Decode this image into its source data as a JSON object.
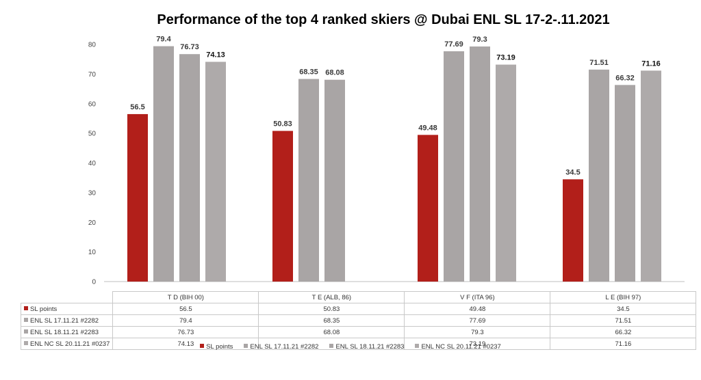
{
  "chart_data": {
    "type": "bar",
    "title": "Performance of the top 4 ranked skiers @ Dubai ENL SL 17-2-.11.2021",
    "xlabel": "",
    "ylabel": "",
    "ylim": [
      0,
      80
    ],
    "yticks": [
      "0",
      "10",
      "20",
      "30",
      "40",
      "50",
      "60",
      "70",
      "80"
    ],
    "grid": false,
    "legend_position": "bottom",
    "categories": [
      "T D (BIH 00)",
      "T E (ALB, 86)",
      "V F (ITA 96)",
      "L E (BIH 97)"
    ],
    "series": [
      {
        "name": "SL points",
        "color": "#b21f1a",
        "values": [
          56.5,
          50.83,
          49.48,
          34.5
        ],
        "labels": [
          "56.5",
          "50.83",
          "49.48",
          "34.5"
        ],
        "table": [
          "56.5",
          "50.83",
          "49.48",
          "34.5"
        ]
      },
      {
        "name": "ENL SL 17.11.21 #2282",
        "color": "#a9a5a5",
        "values": [
          79.4,
          68.35,
          77.69,
          71.51
        ],
        "labels": [
          "79.4",
          "68.35",
          "77.69",
          "71.51"
        ],
        "table": [
          "79.4",
          "68.35",
          "77.69",
          "71.51"
        ]
      },
      {
        "name": "ENL SL 18.11.21 #2283",
        "color": "#a9a5a5",
        "values": [
          76.73,
          68.08,
          79.3,
          66.32
        ],
        "labels": [
          "76.73",
          "68.08",
          "79.3",
          "66.32"
        ],
        "table": [
          "76.73",
          "68.08",
          "79.3",
          "66.32"
        ]
      },
      {
        "name": "ENL NC SL 20.11.21 #0237",
        "color": "#aeaaaa",
        "values": [
          74.13,
          null,
          73.19,
          71.16
        ],
        "labels": [
          "74.13",
          "",
          "73.19",
          "71.16"
        ],
        "table": [
          "74.13",
          "",
          "73.19",
          "71.16"
        ]
      }
    ]
  }
}
